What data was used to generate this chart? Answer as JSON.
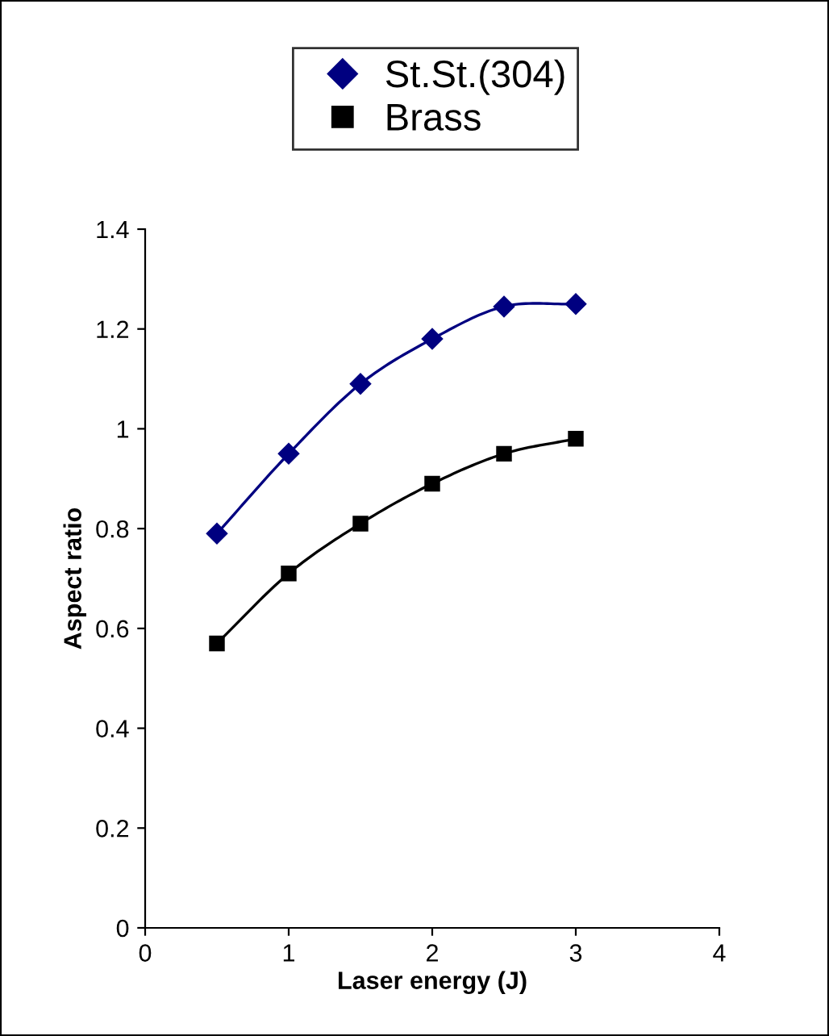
{
  "chart_data": {
    "type": "line",
    "xlabel": "Laser energy (J)",
    "ylabel": "Aspect ratio",
    "x": [
      0.5,
      1,
      1.5,
      2,
      2.5,
      3
    ],
    "series": [
      {
        "name": "St.St.(304)",
        "color": "#000080",
        "marker": "diamond",
        "values": [
          0.79,
          0.95,
          1.09,
          1.18,
          1.245,
          1.25
        ]
      },
      {
        "name": "Brass",
        "color": "#000000",
        "marker": "square",
        "values": [
          0.57,
          0.71,
          0.81,
          0.89,
          0.95,
          0.98
        ]
      }
    ],
    "xlim": [
      0,
      4
    ],
    "xticks": [
      0,
      1,
      2,
      3,
      4
    ],
    "ylim": [
      0,
      1.4
    ],
    "yticks": [
      0,
      0.2,
      0.4,
      0.6,
      0.8,
      1,
      1.2,
      1.4
    ],
    "grid": false,
    "legend": "top"
  }
}
